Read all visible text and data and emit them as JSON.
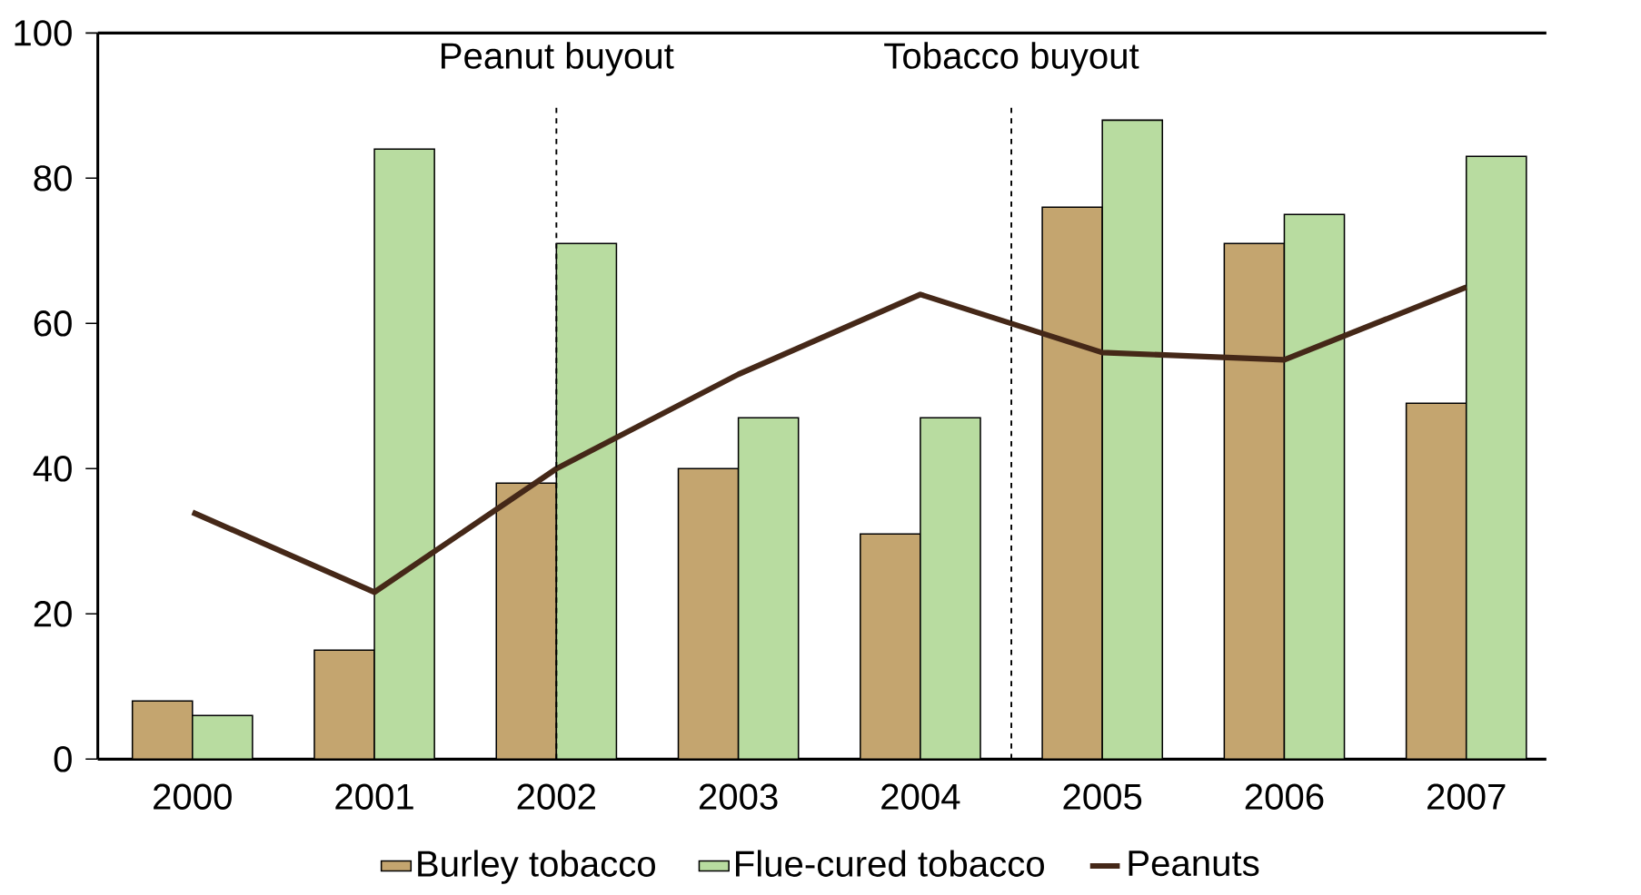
{
  "chart_data": {
    "type": "bar",
    "categories": [
      "2000",
      "2001",
      "2002",
      "2003",
      "2004",
      "2005",
      "2006",
      "2007"
    ],
    "series": [
      {
        "name": "Burley tobacco",
        "color": "#c4a56f",
        "values": [
          8,
          15,
          38,
          40,
          31,
          76,
          71,
          49
        ]
      },
      {
        "name": "Flue-cured tobacco",
        "color": "#b8dca0",
        "values": [
          6,
          84,
          71,
          47,
          47,
          88,
          75,
          83
        ]
      },
      {
        "name": "Peanuts",
        "type": "line",
        "color": "#452818",
        "values": [
          34,
          23,
          40,
          53,
          64,
          56,
          55,
          65
        ]
      }
    ],
    "ylim": [
      0,
      100
    ],
    "yticks": [
      0,
      20,
      40,
      60,
      80,
      100
    ],
    "ref_lines": [
      {
        "axis": "x",
        "value": "2002",
        "label": "Peanut buyout",
        "line_style": "dashed"
      }
    ],
    "annotations": [
      "Tobacco buyout"
    ],
    "grid": false,
    "legend": "bottom"
  }
}
